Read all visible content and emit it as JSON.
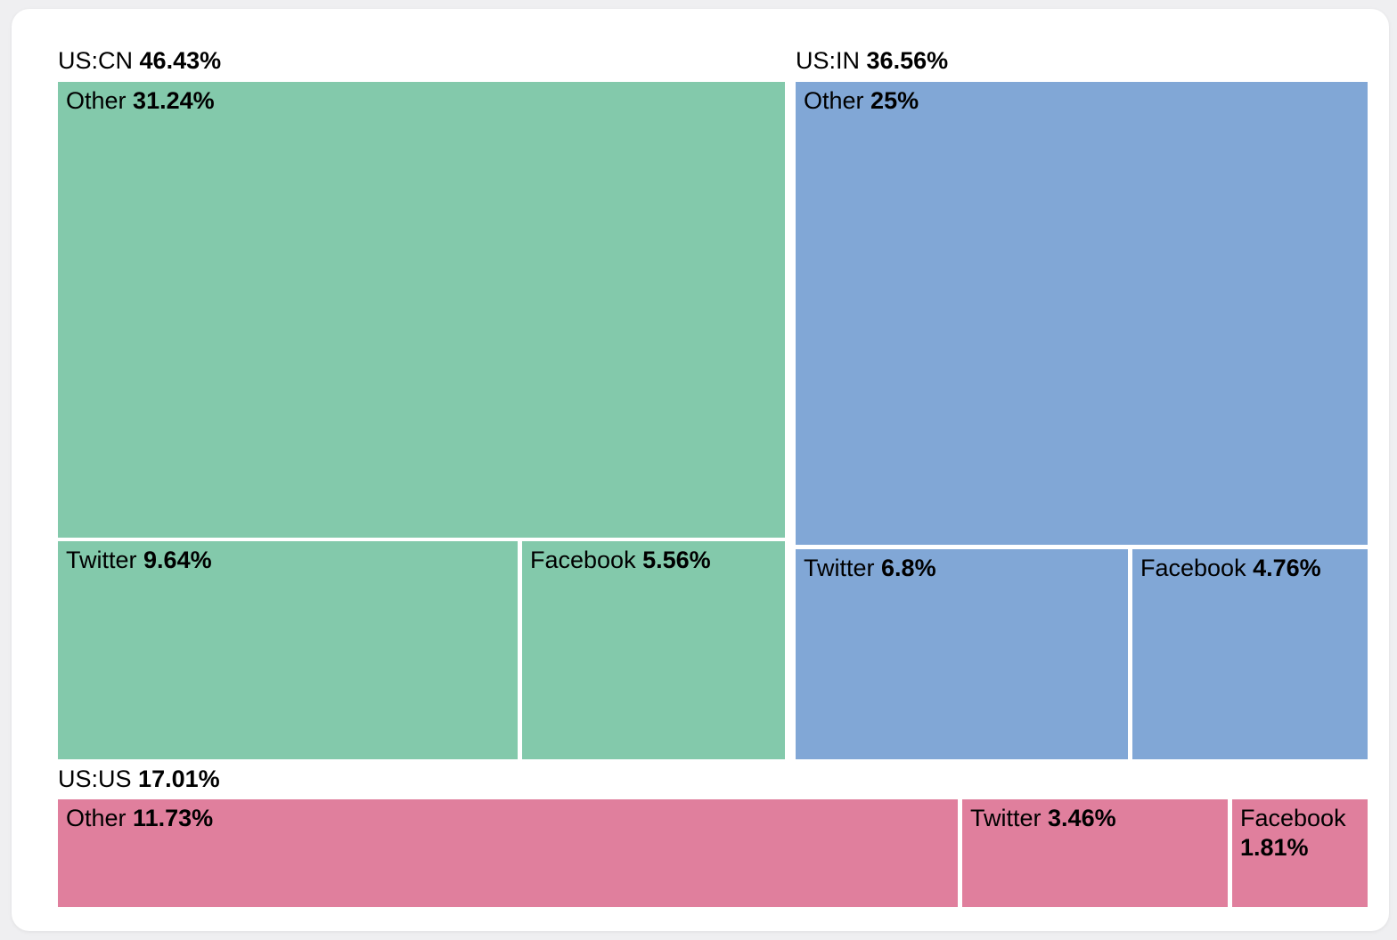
{
  "page": {
    "background_color": "#efeff1",
    "card_background_color": "#ffffff",
    "text_color": "#000000"
  },
  "chart_data": {
    "type": "treemap",
    "title": "",
    "legend": "none",
    "groups": [
      {
        "label": "US:CN",
        "value": 46.43,
        "value_label": "46.43%",
        "color": "#83C9AB",
        "children": [
          {
            "label": "Other",
            "value": 31.24,
            "value_label": "31.24%"
          },
          {
            "label": "Twitter",
            "value": 9.64,
            "value_label": "9.64%"
          },
          {
            "label": "Facebook",
            "value": 5.56,
            "value_label": "5.56%"
          }
        ]
      },
      {
        "label": "US:IN",
        "value": 36.56,
        "value_label": "36.56%",
        "color": "#81A7D6",
        "children": [
          {
            "label": "Other",
            "value": 25,
            "value_label": "25%"
          },
          {
            "label": "Twitter",
            "value": 6.8,
            "value_label": "6.8%"
          },
          {
            "label": "Facebook",
            "value": 4.76,
            "value_label": "4.76%"
          }
        ]
      },
      {
        "label": "US:US",
        "value": 17.01,
        "value_label": "17.01%",
        "color": "#E07F9D",
        "children": [
          {
            "label": "Other",
            "value": 11.73,
            "value_label": "11.73%"
          },
          {
            "label": "Twitter",
            "value": 3.46,
            "value_label": "3.46%"
          },
          {
            "label": "Facebook",
            "value": 1.81,
            "value_label": "1.81%"
          }
        ]
      }
    ]
  }
}
